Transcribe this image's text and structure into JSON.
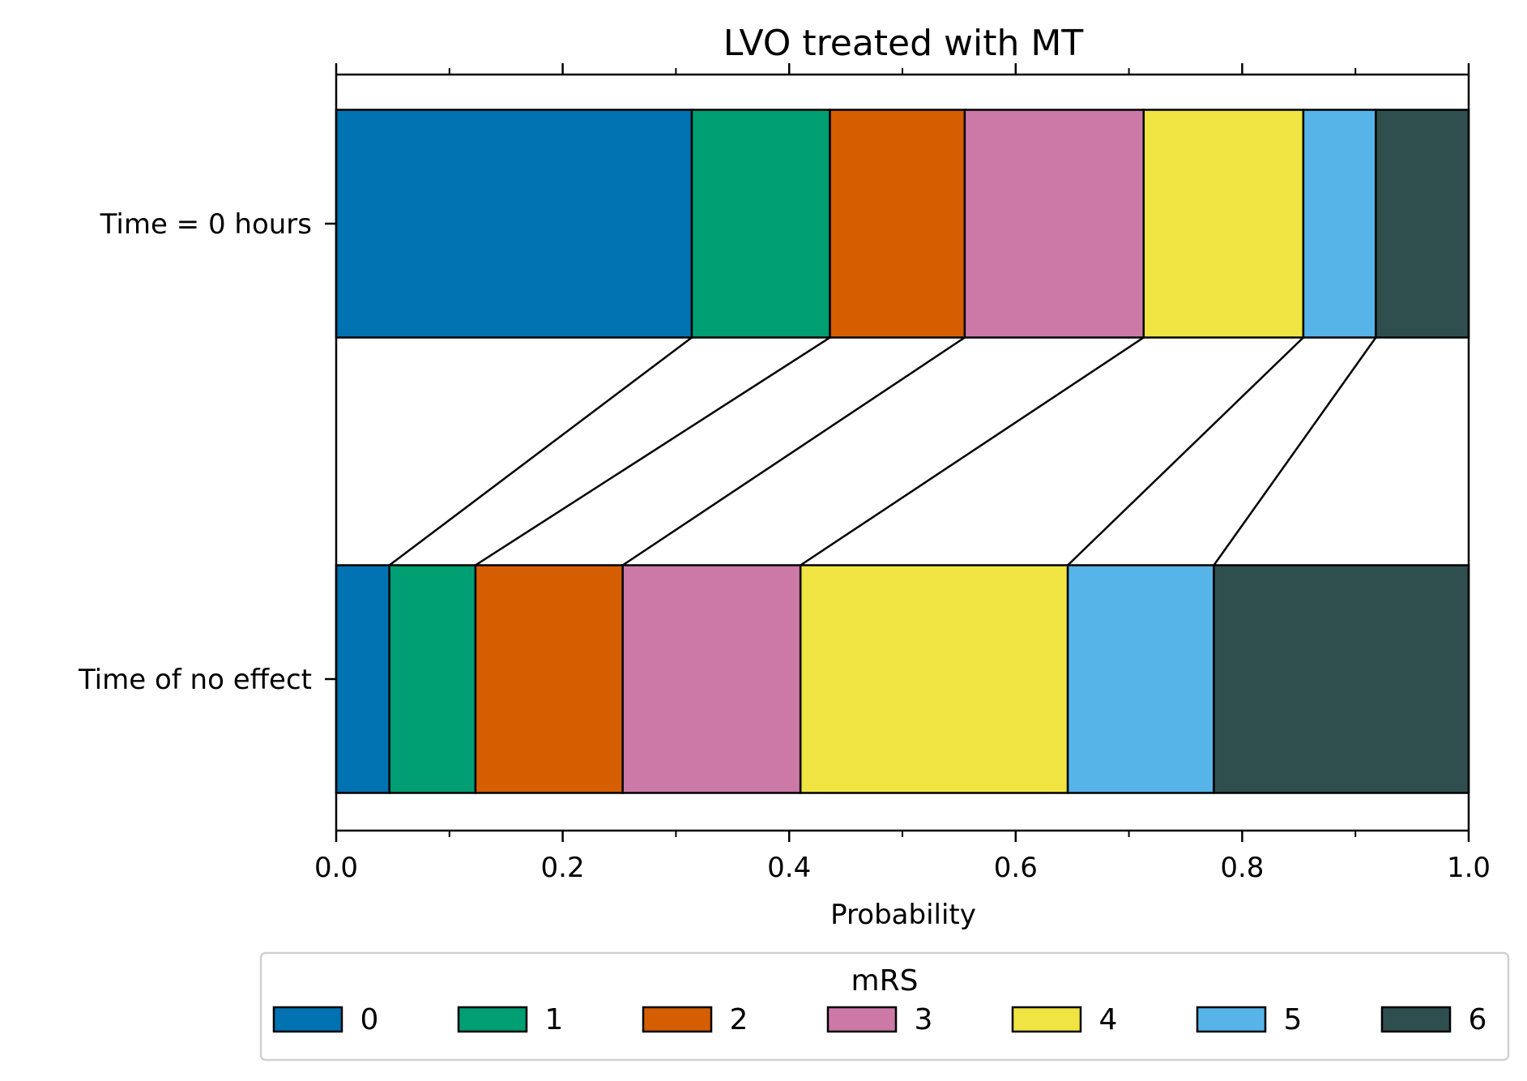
{
  "chart_data": {
    "type": "bar",
    "orientation": "horizontal-stacked",
    "title": "LVO treated with MT",
    "xlabel": "Probability",
    "ylabel": "",
    "xlim": [
      0,
      1
    ],
    "x_ticks": [
      "0.0",
      "0.2",
      "0.4",
      "0.6",
      "0.8",
      "1.0"
    ],
    "x_minor_ticks": [
      0.1,
      0.3,
      0.5,
      0.7,
      0.9
    ],
    "categories": [
      "Time = 0 hours",
      "Time of no effect"
    ],
    "series": [
      {
        "name": "0",
        "color": "#0072b2",
        "values": [
          0.314,
          0.047
        ]
      },
      {
        "name": "1",
        "color": "#009e73",
        "values": [
          0.122,
          0.076
        ]
      },
      {
        "name": "2",
        "color": "#d55e00",
        "values": [
          0.119,
          0.13
        ]
      },
      {
        "name": "3",
        "color": "#cc79a7",
        "values": [
          0.158,
          0.157
        ]
      },
      {
        "name": "4",
        "color": "#f0e442",
        "values": [
          0.141,
          0.236
        ]
      },
      {
        "name": "5",
        "color": "#56b4e9",
        "values": [
          0.064,
          0.129
        ]
      },
      {
        "name": "6",
        "color": "#2f4f4f",
        "values": [
          0.082,
          0.225
        ]
      }
    ],
    "connector_lines": true,
    "grid": false,
    "legend": {
      "title": "mRS",
      "placement": "bottom-center",
      "columns": 7
    }
  }
}
